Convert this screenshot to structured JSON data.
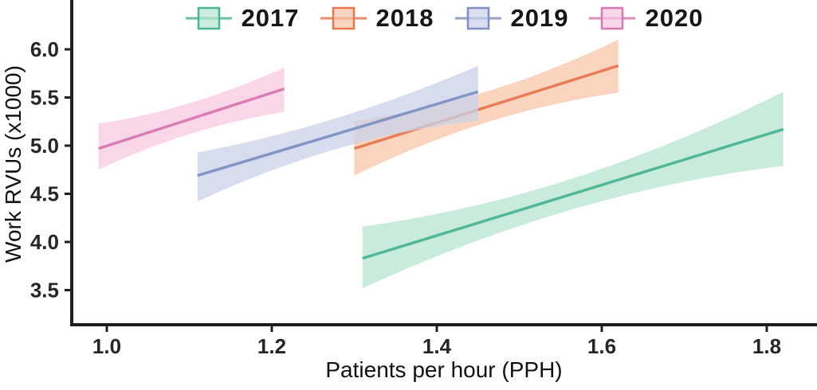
{
  "chart_data": {
    "type": "line",
    "variant": "regression-lines-with-confidence-ribbons",
    "title": "",
    "xlabel": "Patients per hour (PPH)",
    "ylabel": "Work RVUs (x1000)",
    "xlim": [
      0.955,
      1.86
    ],
    "ylim": [
      3.14,
      6.5
    ],
    "x_ticks": {
      "values": [
        1.0,
        1.2,
        1.4,
        1.6,
        1.8
      ],
      "labels": [
        "1.0",
        "1.2",
        "1.4",
        "1.6",
        "1.8"
      ]
    },
    "y_ticks": {
      "values": [
        6.0,
        5.5,
        5.0,
        4.5,
        4.0,
        3.5
      ],
      "labels": [
        "6.0",
        "5.5",
        "5.0",
        "4.5",
        "4.0",
        "3.5"
      ]
    },
    "grid": false,
    "legend_position": "top-center",
    "axis_color": "#1f1f1f",
    "series": [
      {
        "name": "2017",
        "line_color": "#4ab494",
        "fill_color": "#b7e4d0",
        "x": [
          1.31,
          1.565,
          1.82
        ],
        "y": [
          3.83,
          4.5,
          5.17
        ],
        "ci_upper": [
          4.16,
          4.66,
          5.56
        ],
        "ci_lower": [
          3.52,
          4.34,
          4.79
        ]
      },
      {
        "name": "2018",
        "line_color": "#e8764f",
        "fill_color": "#f8c5a8",
        "x": [
          1.3,
          1.46,
          1.62
        ],
        "y": [
          4.97,
          5.4,
          5.83
        ],
        "ci_upper": [
          5.26,
          5.56,
          6.1
        ],
        "ci_lower": [
          4.69,
          5.24,
          5.55
        ]
      },
      {
        "name": "2019",
        "line_color": "#8090c2",
        "fill_color": "#c9d2e9",
        "x": [
          1.11,
          1.28,
          1.45
        ],
        "y": [
          4.69,
          5.13,
          5.56
        ],
        "ci_upper": [
          4.93,
          5.29,
          5.83
        ],
        "ci_lower": [
          4.42,
          4.97,
          5.26
        ]
      },
      {
        "name": "2020",
        "line_color": "#d778b2",
        "fill_color": "#f8c8e2",
        "x": [
          0.99,
          1.1,
          1.215
        ],
        "y": [
          4.97,
          5.28,
          5.59
        ],
        "ci_upper": [
          5.23,
          5.44,
          5.81
        ],
        "ci_lower": [
          4.75,
          5.12,
          5.35
        ]
      }
    ],
    "legend": [
      {
        "label": "2017"
      },
      {
        "label": "2018"
      },
      {
        "label": "2019"
      },
      {
        "label": "2020"
      }
    ]
  }
}
